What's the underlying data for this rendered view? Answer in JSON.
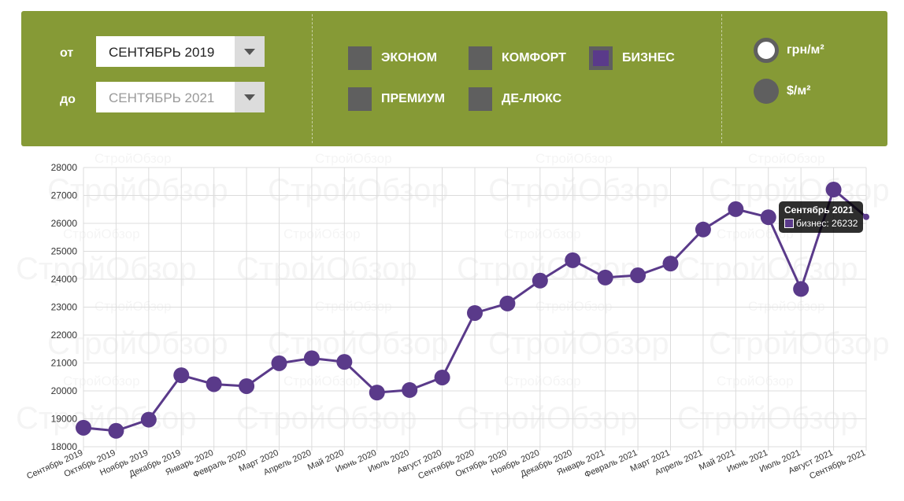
{
  "filters": {
    "from_label": "от",
    "from_value": "СЕНТЯБРЬ 2019",
    "to_label": "до",
    "to_value": "СЕНТЯБРЬ 2021",
    "categories": [
      {
        "label": "ЭКОНОМ",
        "selected": false
      },
      {
        "label": "КОМФОРТ",
        "selected": false
      },
      {
        "label": "БИЗНЕС",
        "selected": true
      },
      {
        "label": "ПРЕМИУМ",
        "selected": false
      },
      {
        "label": "ДЕ-ЛЮКС",
        "selected": false
      }
    ],
    "units": [
      {
        "label": "грн/м²",
        "selected": true
      },
      {
        "label": "$/м²",
        "selected": false
      }
    ]
  },
  "colors": {
    "panel": "#869a36",
    "series": "#5a3a8a",
    "inactive": "#5f5f5f"
  },
  "watermark": "СтройОбзор",
  "tooltip": {
    "title": "Сентябрь 2021",
    "series_label": "бизнес: 26232"
  },
  "chart_data": {
    "type": "line",
    "categories": [
      "Сентябрь 2019",
      "Октябрь 2019",
      "Ноябрь 2019",
      "Декабрь 2019",
      "Январь 2020",
      "Февраль 2020",
      "Март 2020",
      "Апрель 2020",
      "Май 2020",
      "Июнь 2020",
      "Июль 2020",
      "Август 2020",
      "Сентябрь 2020",
      "Октябрь 2020",
      "Ноябрь 2020",
      "Декабрь 2020",
      "Январь 2021",
      "Февраль 2021",
      "Март 2021",
      "Апрель 2021",
      "Май 2021",
      "Июнь 2021",
      "Июль 2021",
      "Август 2021",
      "Сентябрь 2021"
    ],
    "series": [
      {
        "name": "бизнес",
        "values": [
          18680,
          18570,
          18970,
          20560,
          20240,
          20170,
          20990,
          21170,
          21040,
          19940,
          20030,
          20480,
          22790,
          23130,
          23950,
          24680,
          24060,
          24140,
          24560,
          25780,
          26510,
          26220,
          23650,
          27210,
          26232
        ]
      }
    ],
    "ylim": [
      18000,
      28000
    ],
    "yticks": [
      18000,
      19000,
      20000,
      21000,
      22000,
      23000,
      24000,
      25000,
      26000,
      27000,
      28000
    ],
    "grid": true
  }
}
